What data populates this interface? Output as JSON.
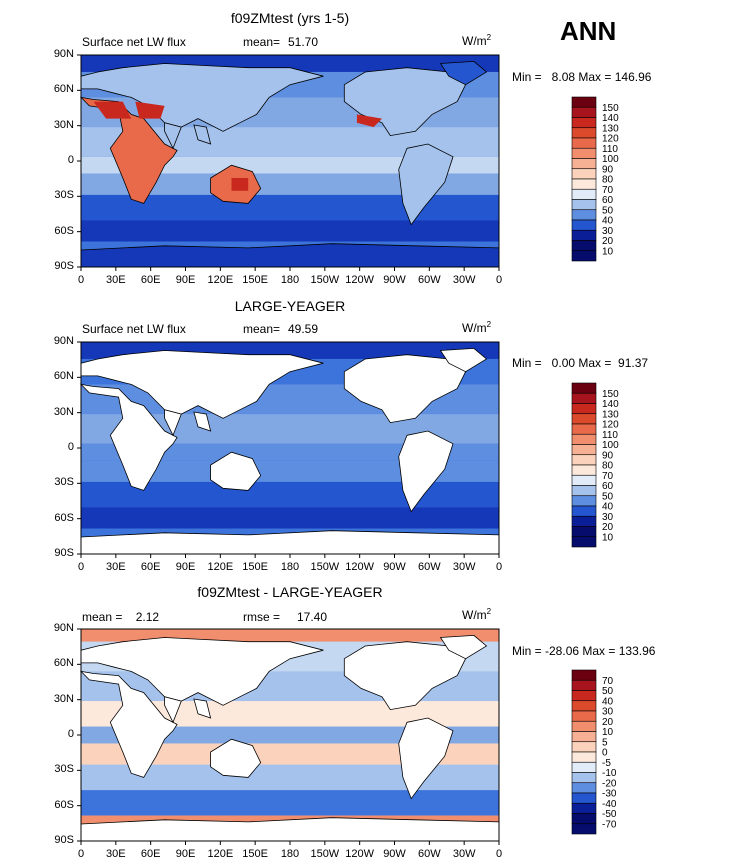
{
  "season": "ANN",
  "colors": {
    "warm": [
      "#6b0010",
      "#a8141e",
      "#c8281e",
      "#dc4a2c",
      "#e86a4a",
      "#f08e6e",
      "#f6b094",
      "#fbd2bc",
      "#fde9dc"
    ],
    "cool": [
      "#e2ecf8",
      "#c4d8f2",
      "#a4c2ec",
      "#82a8e4",
      "#5e8ee0",
      "#3c74dc",
      "#2456d0",
      "#1438b8",
      "#0a1e98",
      "#050c6c"
    ],
    "land": "#ffffff",
    "coast": "#000000"
  },
  "latitude_labels": [
    "90N",
    "60N",
    "30N",
    "0",
    "30S",
    "60S",
    "90S"
  ],
  "longitude_labels": [
    "0",
    "30E",
    "60E",
    "90E",
    "120E",
    "150E",
    "180",
    "150W",
    "120W",
    "90W",
    "60W",
    "30W",
    "0"
  ],
  "panels": [
    {
      "title": "f09ZMtest (yrs 1-5)",
      "left_label": "Surface net LW flux",
      "stat_label": "mean=",
      "stat_value": "51.70",
      "units": "W/m",
      "units_sup": "2",
      "minmax": "Min =   8.08 Max = 146.96",
      "colorbar_levels": [
        "150",
        "140",
        "130",
        "120",
        "110",
        "100",
        "90",
        "80",
        "70",
        "60",
        "50",
        "40",
        "30",
        "20",
        "10"
      ],
      "land_masked": false
    },
    {
      "title": "LARGE-YEAGER",
      "left_label": "Surface net LW flux",
      "stat_label": "mean=",
      "stat_value": "49.59",
      "units": "W/m",
      "units_sup": "2",
      "minmax": "Min =   0.00 Max =  91.37",
      "colorbar_levels": [
        "150",
        "140",
        "130",
        "120",
        "110",
        "100",
        "90",
        "80",
        "70",
        "60",
        "50",
        "40",
        "30",
        "20",
        "10"
      ],
      "land_masked": true
    },
    {
      "title": "f09ZMtest - LARGE-YEAGER",
      "left_label": "mean =    2.12",
      "stat_label": "rmse =",
      "stat_value": "17.40",
      "units": "W/m",
      "units_sup": "2",
      "minmax": "Min = -28.06 Max = 133.96",
      "colorbar_levels": [
        "70",
        "50",
        "40",
        "30",
        "20",
        "10",
        "5",
        "0",
        "-5",
        "-10",
        "-20",
        "-30",
        "-40",
        "-50",
        "-70"
      ],
      "land_masked": true
    }
  ]
}
